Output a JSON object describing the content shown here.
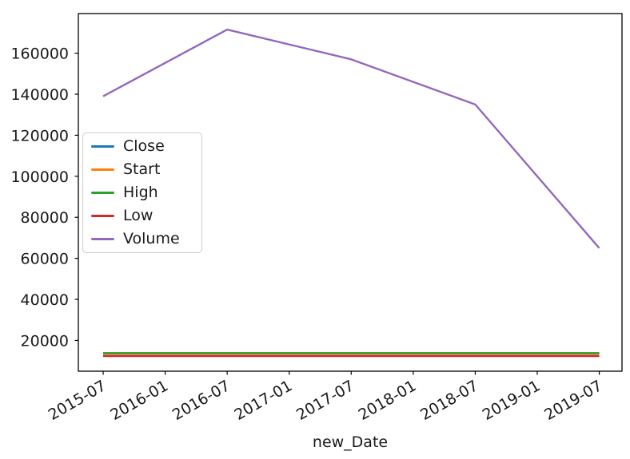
{
  "figure": {
    "background": "#ffffff",
    "text_color": "#1a1a1a",
    "spine_color": "#000000"
  },
  "chart_data": {
    "type": "line",
    "title": "",
    "xlabel": "new_Date",
    "ylabel": "",
    "x": [
      "2015-07",
      "2016-07",
      "2017-07",
      "2018-07",
      "2019-07"
    ],
    "x_months": [
      0,
      12,
      24,
      36,
      48
    ],
    "series": [
      {
        "name": "Close",
        "color": "#1f77b4",
        "values": [
          13700,
          13700,
          13700,
          13700,
          13700
        ]
      },
      {
        "name": "Start",
        "color": "#ff7f0e",
        "values": [
          13600,
          13600,
          13600,
          13600,
          13600
        ]
      },
      {
        "name": "High",
        "color": "#2ca02c",
        "values": [
          13800,
          13800,
          13800,
          13800,
          13800
        ]
      },
      {
        "name": "Low",
        "color": "#d62728",
        "values": [
          12400,
          12400,
          12400,
          12400,
          12400
        ]
      },
      {
        "name": "Volume",
        "color": "#9467bd",
        "values": [
          139000,
          171500,
          157000,
          135000,
          65000
        ]
      }
    ],
    "x_ticks": {
      "labels": [
        "2015-07",
        "2016-01",
        "2016-07",
        "2017-01",
        "2017-07",
        "2018-01",
        "2018-07",
        "2019-01",
        "2019-07"
      ],
      "months": [
        0,
        6,
        12,
        18,
        24,
        30,
        36,
        42,
        48
      ]
    },
    "y_ticks": [
      20000,
      40000,
      60000,
      80000,
      100000,
      120000,
      140000,
      160000
    ],
    "xlim_months": [
      -2.4,
      50.2
    ],
    "ylim": [
      5000,
      179300
    ],
    "grid": false,
    "legend_position": "center-left"
  }
}
